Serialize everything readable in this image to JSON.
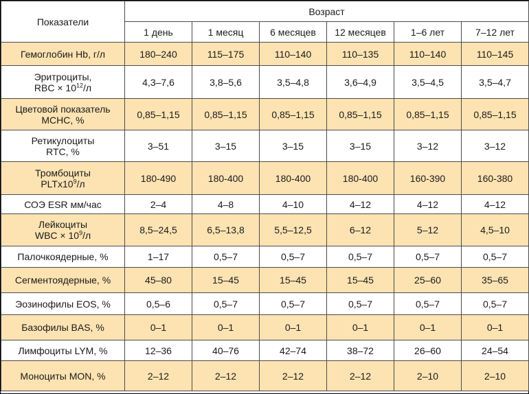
{
  "header": {
    "param_label": "Показатели",
    "age_label": "Возраст",
    "ages": [
      "1 день",
      "1 месяц",
      "6 месяцев",
      "12 месяцев",
      "1–6 лет",
      "7–12 лет"
    ]
  },
  "rows": [
    {
      "name_lines": [
        {
          "text": "Гемоглобин Hb, г/л"
        }
      ],
      "values": [
        "180–240",
        "115–175",
        "110–140",
        "110–135",
        "110–140",
        "110–145"
      ]
    },
    {
      "name_lines": [
        {
          "text": "Эритроциты,"
        },
        {
          "pre": "RBC × 10",
          "sup": "12",
          "post": "/л"
        }
      ],
      "values": [
        "4,3–7,6",
        "3,8–5,6",
        "3,5–4,8",
        "3,6–4,9",
        "3,5–4,5",
        "3,5–4,7"
      ]
    },
    {
      "name_lines": [
        {
          "text": "Цветовой показатель"
        },
        {
          "text": "MCHC, %"
        }
      ],
      "values": [
        "0,85–1,15",
        "0,85–1,15",
        "0,85–1,15",
        "0,85–1,15",
        "0,85–1,15",
        "0,85–1,15"
      ]
    },
    {
      "name_lines": [
        {
          "text": "Ретикулоциты"
        },
        {
          "text": "RTC, %"
        }
      ],
      "values": [
        "3–51",
        "3–15",
        "3–15",
        "3–15",
        "3–12",
        "3–12"
      ]
    },
    {
      "name_lines": [
        {
          "text": "Тромбоциты"
        },
        {
          "pre": "PLTx10",
          "sup": "9",
          "post": "/л"
        }
      ],
      "values": [
        "180-490",
        "180-400",
        "180-400",
        "180-400",
        "160-390",
        "160-380"
      ]
    },
    {
      "name_lines": [
        {
          "text": "СОЭ ESR мм/час"
        }
      ],
      "values": [
        "2–4",
        "4–8",
        "4–10",
        "4–12",
        "4–12",
        "4–12"
      ]
    },
    {
      "name_lines": [
        {
          "text": "Лейкоциты"
        },
        {
          "pre": "WBC × 10",
          "sup": "9",
          "post": "/л"
        }
      ],
      "values": [
        "8,5–24,5",
        "6,5–13,8",
        "5,5–12,5",
        "6–12",
        "5–12",
        "4,5–10"
      ]
    },
    {
      "name_lines": [
        {
          "text": "Палочкоядерные, %"
        }
      ],
      "values": [
        "1–17",
        "0,5–7",
        "0,5–7",
        "0,5–7",
        "0,5–7",
        "0,5–7"
      ]
    },
    {
      "name_lines": [
        {
          "text": "Сегментоядерные, %"
        }
      ],
      "values": [
        "45–80",
        "15–45",
        "15–45",
        "15–45",
        "25–60",
        "35–65"
      ]
    },
    {
      "name_lines": [
        {
          "text": "Эозинофилы EOS, %"
        }
      ],
      "values": [
        "0,5–6",
        "0,5–7",
        "0,5–7",
        "0,5–7",
        "0,5–7",
        "0,5–7"
      ]
    },
    {
      "name_lines": [
        {
          "text": "Базофилы BAS, %"
        }
      ],
      "values": [
        "0–1",
        "0–1",
        "0–1",
        "0–1",
        "0–1",
        "0–1"
      ]
    },
    {
      "name_lines": [
        {
          "text": "Лимфоциты LYM, %"
        }
      ],
      "values": [
        "12–36",
        "40–76",
        "42–74",
        "38–72",
        "26–60",
        "24–54"
      ]
    },
    {
      "name_lines": [
        {
          "text": "Моноциты MON, %"
        }
      ],
      "values": [
        "2–12",
        "2–12",
        "2–12",
        "2–12",
        "2–10",
        "2–10"
      ]
    }
  ]
}
